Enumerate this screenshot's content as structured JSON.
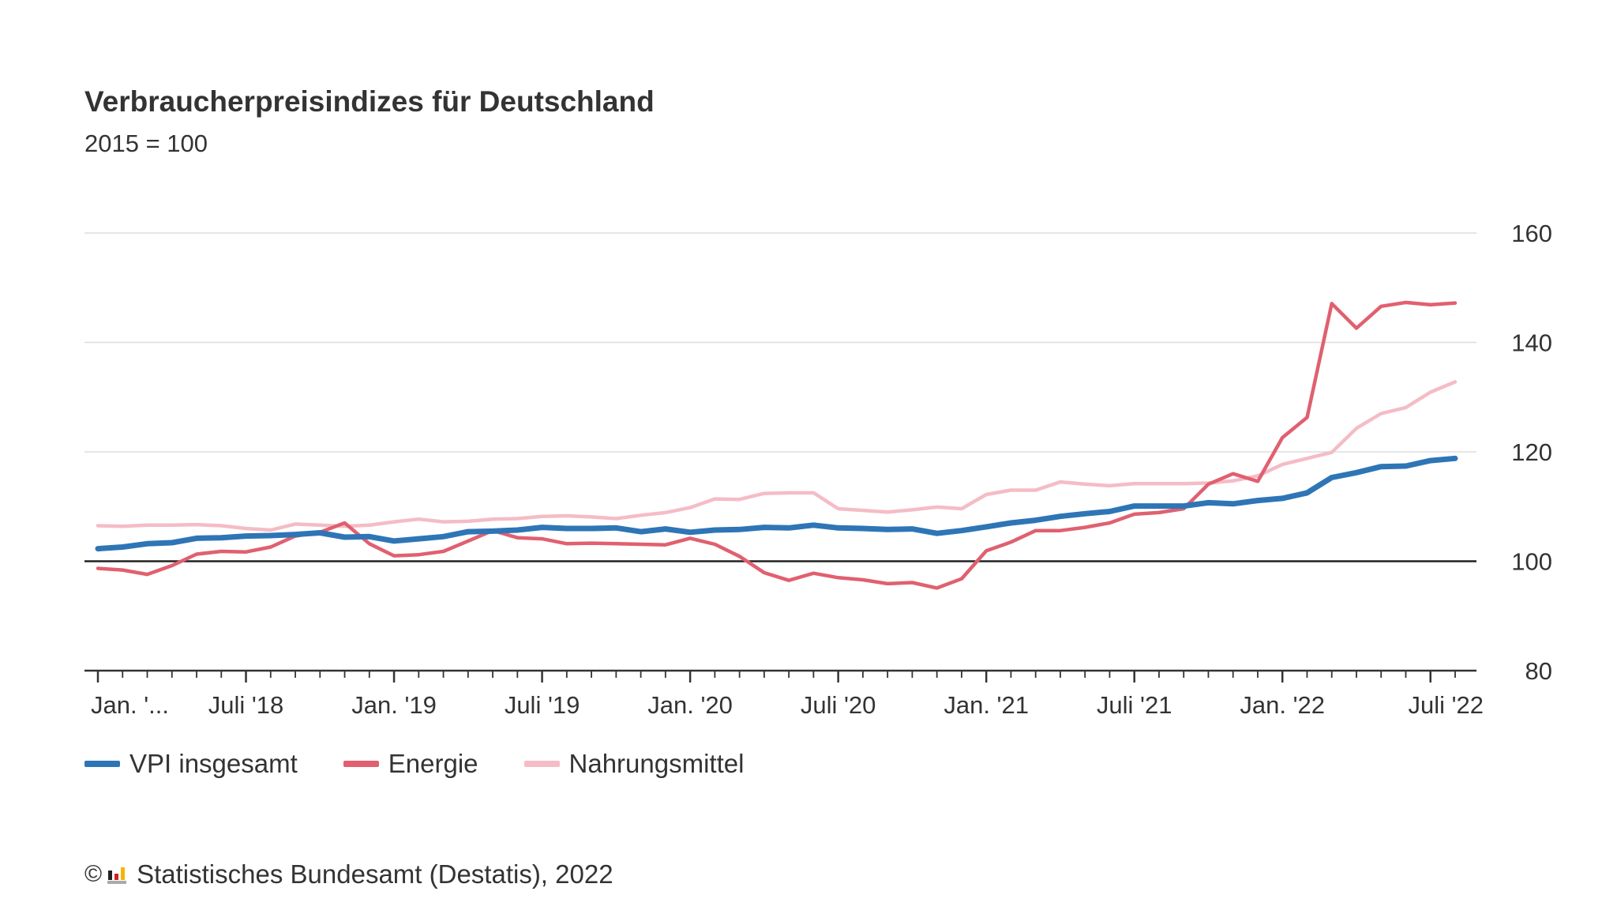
{
  "title": "Verbraucherpreisindizes für Deutschland",
  "subtitle": "2015 = 100",
  "footer": {
    "copyright_symbol": "©",
    "text": "Statistisches Bundesamt (Destatis), 2022"
  },
  "colors": {
    "vpi": "#2e75b6",
    "energie": "#e06070",
    "nahrungsmittel": "#f5bcc6",
    "grid": "#dddddd",
    "baseline": "#222222",
    "axis": "#333333",
    "text": "#333333"
  },
  "chart_data": {
    "type": "line",
    "title": "Verbraucherpreisindizes für Deutschland",
    "subtitle": "2015 = 100",
    "xlabel": "",
    "ylabel": "",
    "ylim": [
      80,
      160
    ],
    "y_ticks": [
      80,
      100,
      120,
      140,
      160
    ],
    "y_axis_position": "right",
    "reference_line": 100,
    "grid": true,
    "legend_position": "bottom-left",
    "x_tick_labels": [
      {
        "index": 0,
        "label": "Jan. '..."
      },
      {
        "index": 6,
        "label": "Juli '18"
      },
      {
        "index": 12,
        "label": "Jan. '19"
      },
      {
        "index": 18,
        "label": "Juli '19"
      },
      {
        "index": 24,
        "label": "Jan. '20"
      },
      {
        "index": 30,
        "label": "Juli '20"
      },
      {
        "index": 36,
        "label": "Jan. '21"
      },
      {
        "index": 42,
        "label": "Juli '21"
      },
      {
        "index": 48,
        "label": "Jan. '22"
      },
      {
        "index": 54,
        "label": "Juli '22"
      }
    ],
    "x": [
      "2018-01",
      "2018-02",
      "2018-03",
      "2018-04",
      "2018-05",
      "2018-06",
      "2018-07",
      "2018-08",
      "2018-09",
      "2018-10",
      "2018-11",
      "2018-12",
      "2019-01",
      "2019-02",
      "2019-03",
      "2019-04",
      "2019-05",
      "2019-06",
      "2019-07",
      "2019-08",
      "2019-09",
      "2019-10",
      "2019-11",
      "2019-12",
      "2020-01",
      "2020-02",
      "2020-03",
      "2020-04",
      "2020-05",
      "2020-06",
      "2020-07",
      "2020-08",
      "2020-09",
      "2020-10",
      "2020-11",
      "2020-12",
      "2021-01",
      "2021-02",
      "2021-03",
      "2021-04",
      "2021-05",
      "2021-06",
      "2021-07",
      "2021-08",
      "2021-09",
      "2021-10",
      "2021-11",
      "2021-12",
      "2022-01",
      "2022-02",
      "2022-03",
      "2022-04",
      "2022-05",
      "2022-06",
      "2022-07",
      "2022-08"
    ],
    "series": [
      {
        "name": "VPI insgesamt",
        "color": "#2e75b6",
        "values": [
          102.3,
          102.6,
          103.2,
          103.4,
          104.2,
          104.3,
          104.6,
          104.7,
          104.9,
          105.2,
          104.4,
          104.5,
          103.7,
          104.1,
          104.5,
          105.4,
          105.5,
          105.7,
          106.2,
          106.0,
          106.0,
          106.1,
          105.4,
          105.9,
          105.3,
          105.7,
          105.8,
          106.2,
          106.1,
          106.6,
          106.1,
          106.0,
          105.8,
          105.9,
          105.1,
          105.6,
          106.3,
          107.0,
          107.5,
          108.2,
          108.7,
          109.1,
          110.1,
          110.1,
          110.1,
          110.7,
          110.5,
          111.1,
          111.5,
          112.5,
          115.3,
          116.2,
          117.3,
          117.4,
          118.4,
          118.8
        ]
      },
      {
        "name": "Energie",
        "color": "#e06070",
        "values": [
          98.7,
          98.4,
          97.6,
          99.2,
          101.3,
          101.8,
          101.7,
          102.6,
          104.6,
          105.3,
          107.0,
          103.2,
          101.0,
          101.2,
          101.8,
          103.7,
          105.6,
          104.3,
          104.1,
          103.2,
          103.3,
          103.2,
          103.1,
          103.0,
          104.2,
          103.1,
          100.9,
          97.9,
          96.5,
          97.8,
          97.0,
          96.6,
          95.9,
          96.1,
          95.1,
          96.8,
          101.9,
          103.5,
          105.6,
          105.6,
          106.2,
          107.0,
          108.6,
          108.9,
          109.6,
          114.1,
          116.0,
          114.6,
          122.6,
          126.3,
          147.1,
          142.6,
          146.6,
          147.3,
          146.9,
          147.2
        ]
      },
      {
        "name": "Nahrungsmittel",
        "color": "#f5bcc6",
        "values": [
          106.5,
          106.4,
          106.6,
          106.6,
          106.7,
          106.5,
          106.0,
          105.7,
          106.8,
          106.6,
          106.4,
          106.6,
          107.2,
          107.7,
          107.2,
          107.3,
          107.7,
          107.8,
          108.2,
          108.3,
          108.1,
          107.8,
          108.4,
          108.9,
          109.8,
          111.4,
          111.3,
          112.4,
          112.5,
          112.5,
          109.6,
          109.3,
          109.0,
          109.4,
          109.9,
          109.6,
          112.2,
          113.0,
          113.0,
          114.5,
          114.1,
          113.8,
          114.2,
          114.2,
          114.2,
          114.3,
          114.7,
          115.6,
          117.7,
          118.8,
          119.9,
          124.3,
          127.0,
          128.1,
          130.9,
          132.8
        ]
      }
    ]
  }
}
